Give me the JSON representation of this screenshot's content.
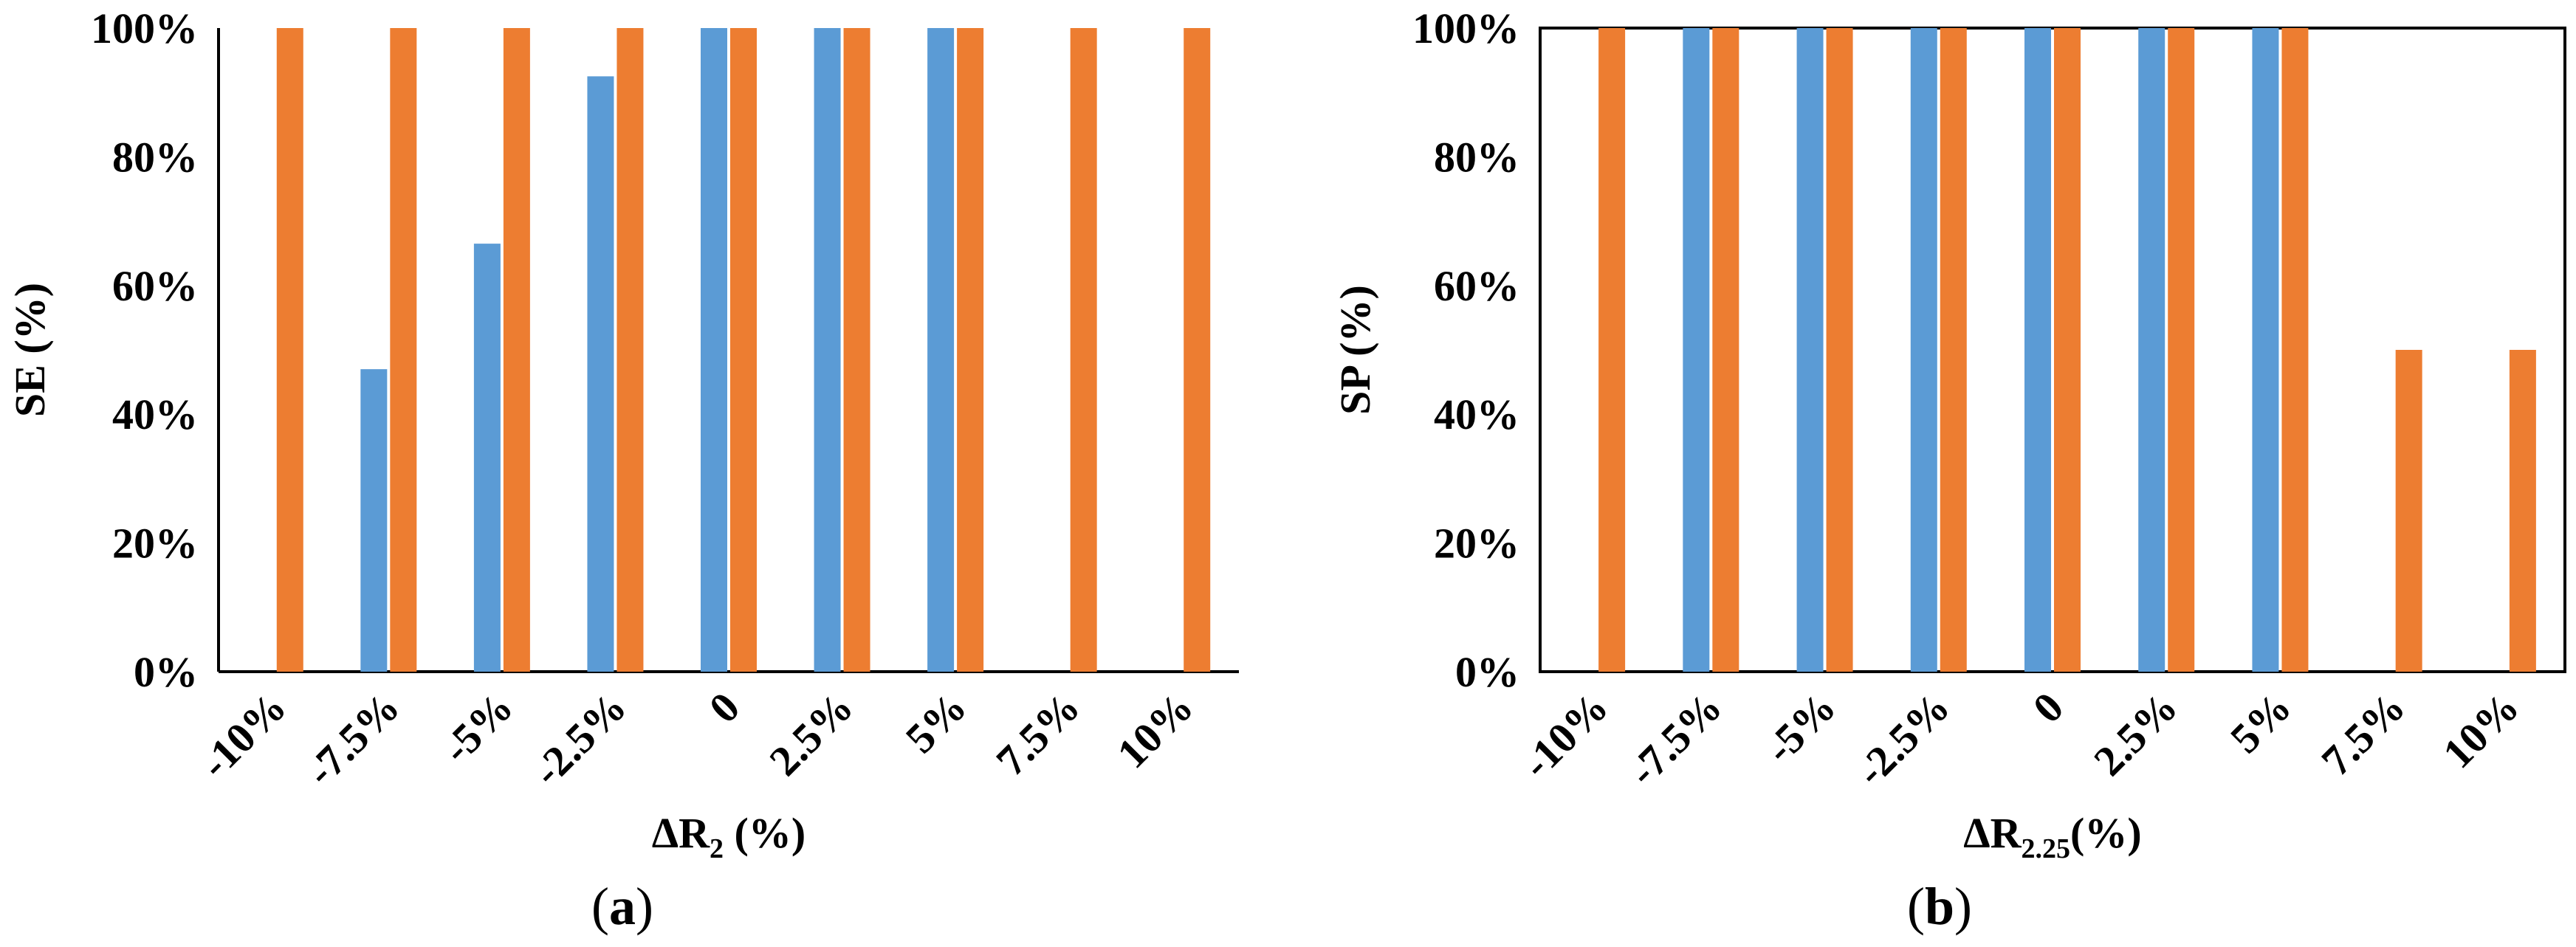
{
  "colors": {
    "series1": "#5b9bd5",
    "series2": "#ed7d31",
    "axis": "#000000"
  },
  "chart_data": [
    {
      "type": "bar",
      "panel_label": "a",
      "categories": [
        "-10%",
        "-7.5%",
        "-5%",
        "-2.5%",
        "0",
        "2.5%",
        "5%",
        "7.5%",
        "10%"
      ],
      "series": [
        {
          "values": [
            0,
            47,
            66.5,
            92.5,
            100,
            100,
            100,
            0,
            0
          ]
        },
        {
          "values": [
            100,
            100,
            100,
            100,
            100,
            100,
            100,
            100,
            100
          ]
        }
      ],
      "ylabel": "SE (%)",
      "xlabel_main": "ΔR",
      "xlabel_sub": "2",
      "xlabel_tail": " (%)",
      "ylim": [
        0,
        100
      ],
      "yticks": [
        "0%",
        "20%",
        "40%",
        "60%",
        "80%",
        "100%"
      ],
      "grid": false
    },
    {
      "type": "bar",
      "panel_label": "b",
      "categories": [
        "-10%",
        "-7.5%",
        "-5%",
        "-2.5%",
        "0",
        "2.5%",
        "5%",
        "7.5%",
        "10%"
      ],
      "series": [
        {
          "values": [
            0,
            100,
            100,
            100,
            100,
            100,
            100,
            0,
            0
          ]
        },
        {
          "values": [
            100,
            100,
            100,
            100,
            100,
            100,
            100,
            50,
            50
          ]
        }
      ],
      "ylabel": "SP (%)",
      "xlabel_main": "ΔR",
      "xlabel_sub": "2.25",
      "xlabel_tail": "(%)",
      "ylim": [
        0,
        100
      ],
      "yticks": [
        "0%",
        "20%",
        "40%",
        "60%",
        "80%",
        "100%"
      ],
      "grid": false
    }
  ]
}
